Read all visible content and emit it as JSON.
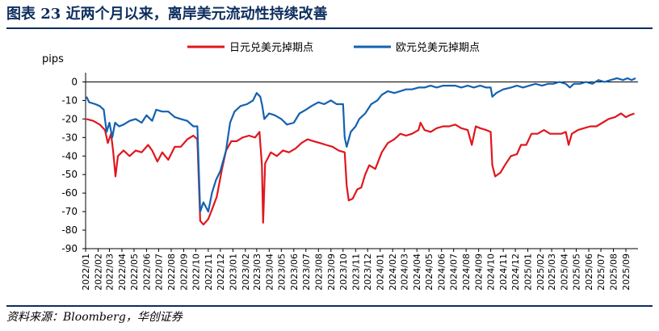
{
  "header": {
    "title": "图表 23   近两个月以来，离岸美元流动性持续改善"
  },
  "footer": {
    "source": "资料来源：Bloomberg，华创证券"
  },
  "colors": {
    "title": "#0d2d5e",
    "jpy_series": "#e0161d",
    "eur_series": "#1461b0"
  },
  "chart_data": {
    "type": "line",
    "title": "",
    "xlabel": "",
    "ylabel": "pips",
    "ylim": [
      -90,
      5
    ],
    "yticks": [
      0,
      -10,
      -20,
      -30,
      -40,
      -50,
      -60,
      -70,
      -80,
      -90
    ],
    "ytick_labels": [
      "0",
      "-10",
      "-20",
      "-30",
      "-40",
      "-50",
      "-60",
      "-70",
      "-80",
      "-90"
    ],
    "xtick_labels": [
      "2022/01",
      "2022/02",
      "2022/03",
      "2022/04",
      "2022/05",
      "2022/06",
      "2022/07",
      "2022/08",
      "2022/09",
      "2022/10",
      "2022/11",
      "2022/12",
      "2023/01",
      "2023/02",
      "2023/03",
      "2023/04",
      "2023/05",
      "2023/06",
      "2023/07",
      "2023/08",
      "2023/09",
      "2023/10",
      "2023/11",
      "2023/12",
      "2024/01",
      "2024/02",
      "2024/03",
      "2024/04",
      "2024/05",
      "2024/06",
      "2024/07",
      "2024/08",
      "2024/09",
      "2024/10",
      "2024/11",
      "2024/12",
      "2025/01",
      "2025/02",
      "2025/03",
      "2025/04",
      "2025/05",
      "2025/06",
      "2025/07",
      "2025/08",
      "2025/09"
    ],
    "legend_position": "top",
    "grid": false,
    "series": [
      {
        "name": "日元兑美元掉期点",
        "color": "#e0161d",
        "points": [
          [
            "2022/01/03",
            -20
          ],
          [
            "2022/01/20",
            -21
          ],
          [
            "2022/02/05",
            -23
          ],
          [
            "2022/02/18",
            -26
          ],
          [
            "2022/02/25",
            -33
          ],
          [
            "2022/03/05",
            -28
          ],
          [
            "2022/03/10",
            -37
          ],
          [
            "2022/03/16",
            -51
          ],
          [
            "2022/03/22",
            -40
          ],
          [
            "2022/04/05",
            -37
          ],
          [
            "2022/04/20",
            -40
          ],
          [
            "2022/05/05",
            -37
          ],
          [
            "2022/05/20",
            -38
          ],
          [
            "2022/06/05",
            -34
          ],
          [
            "2022/06/15",
            -37
          ],
          [
            "2022/06/28",
            -43
          ],
          [
            "2022/07/10",
            -38
          ],
          [
            "2022/07/25",
            -42
          ],
          [
            "2022/08/10",
            -35
          ],
          [
            "2022/08/25",
            -35
          ],
          [
            "2022/09/10",
            -31
          ],
          [
            "2022/09/25",
            -29
          ],
          [
            "2022/10/05",
            -31
          ],
          [
            "2022/10/12",
            -75
          ],
          [
            "2022/10/20",
            -77
          ],
          [
            "2022/11/01",
            -74
          ],
          [
            "2022/11/10",
            -69
          ],
          [
            "2022/11/22",
            -62
          ],
          [
            "2022/12/05",
            -47
          ],
          [
            "2022/12/15",
            -37
          ],
          [
            "2022/12/28",
            -32
          ],
          [
            "2023/01/10",
            -32
          ],
          [
            "2023/01/25",
            -30
          ],
          [
            "2023/02/10",
            -29
          ],
          [
            "2023/02/25",
            -30
          ],
          [
            "2023/03/08",
            -27
          ],
          [
            "2023/03/14",
            -45
          ],
          [
            "2023/03/17",
            -76
          ],
          [
            "2023/03/22",
            -44
          ],
          [
            "2023/04/05",
            -38
          ],
          [
            "2023/04/20",
            -40
          ],
          [
            "2023/05/05",
            -37
          ],
          [
            "2023/05/20",
            -38
          ],
          [
            "2023/06/05",
            -36
          ],
          [
            "2023/06/20",
            -33
          ],
          [
            "2023/07/05",
            -31
          ],
          [
            "2023/07/20",
            -32
          ],
          [
            "2023/08/05",
            -33
          ],
          [
            "2023/08/20",
            -34
          ],
          [
            "2023/09/05",
            -35
          ],
          [
            "2023/09/20",
            -37
          ],
          [
            "2023/10/05",
            -38
          ],
          [
            "2023/10/10",
            -56
          ],
          [
            "2023/10/15",
            -64
          ],
          [
            "2023/10/25",
            -63
          ],
          [
            "2023/11/05",
            -58
          ],
          [
            "2023/11/15",
            -57
          ],
          [
            "2023/11/25",
            -50
          ],
          [
            "2023/12/05",
            -45
          ],
          [
            "2023/12/20",
            -47
          ],
          [
            "2024/01/05",
            -38
          ],
          [
            "2024/01/20",
            -33
          ],
          [
            "2024/02/05",
            -31
          ],
          [
            "2024/02/20",
            -28
          ],
          [
            "2024/03/05",
            -29
          ],
          [
            "2024/03/20",
            -28
          ],
          [
            "2024/04/05",
            -26
          ],
          [
            "2024/04/10",
            -22
          ],
          [
            "2024/04/20",
            -26
          ],
          [
            "2024/05/05",
            -27
          ],
          [
            "2024/05/20",
            -25
          ],
          [
            "2024/06/05",
            -24
          ],
          [
            "2024/06/20",
            -24
          ],
          [
            "2024/07/05",
            -23
          ],
          [
            "2024/07/20",
            -25
          ],
          [
            "2024/08/05",
            -26
          ],
          [
            "2024/08/15",
            -34
          ],
          [
            "2024/08/25",
            -24
          ],
          [
            "2024/09/05",
            -25
          ],
          [
            "2024/09/20",
            -26
          ],
          [
            "2024/10/01",
            -27
          ],
          [
            "2024/10/05",
            -45
          ],
          [
            "2024/10/12",
            -51
          ],
          [
            "2024/10/25",
            -49
          ],
          [
            "2024/11/05",
            -45
          ],
          [
            "2024/11/20",
            -40
          ],
          [
            "2024/12/05",
            -39
          ],
          [
            "2024/12/15",
            -34
          ],
          [
            "2024/12/28",
            -34
          ],
          [
            "2025/01/10",
            -28
          ],
          [
            "2025/01/25",
            -28
          ],
          [
            "2025/02/10",
            -26
          ],
          [
            "2025/02/25",
            -28
          ],
          [
            "2025/03/10",
            -28
          ],
          [
            "2025/03/25",
            -28
          ],
          [
            "2025/04/05",
            -27
          ],
          [
            "2025/04/12",
            -34
          ],
          [
            "2025/04/20",
            -28
          ],
          [
            "2025/05/05",
            -26
          ],
          [
            "2025/05/20",
            -25
          ],
          [
            "2025/06/05",
            -24
          ],
          [
            "2025/06/20",
            -24
          ],
          [
            "2025/07/05",
            -22
          ],
          [
            "2025/07/20",
            -20
          ],
          [
            "2025/08/05",
            -19
          ],
          [
            "2025/08/20",
            -17
          ],
          [
            "2025/09/01",
            -19
          ],
          [
            "2025/09/10",
            -18
          ],
          [
            "2025/09/22",
            -17
          ]
        ]
      },
      {
        "name": "欧元兑美元掉期点",
        "color": "#1461b0",
        "points": [
          [
            "2022/01/03",
            -8
          ],
          [
            "2022/01/10",
            -11
          ],
          [
            "2022/01/25",
            -12
          ],
          [
            "2022/02/05",
            -13
          ],
          [
            "2022/02/15",
            -15
          ],
          [
            "2022/02/22",
            -27
          ],
          [
            "2022/03/01",
            -22
          ],
          [
            "2022/03/08",
            -30
          ],
          [
            "2022/03/15",
            -22
          ],
          [
            "2022/03/25",
            -24
          ],
          [
            "2022/04/05",
            -23
          ],
          [
            "2022/04/20",
            -21
          ],
          [
            "2022/05/05",
            -20
          ],
          [
            "2022/05/20",
            -22
          ],
          [
            "2022/06/01",
            -18
          ],
          [
            "2022/06/15",
            -21
          ],
          [
            "2022/06/25",
            -15
          ],
          [
            "2022/07/10",
            -16
          ],
          [
            "2022/07/25",
            -16
          ],
          [
            "2022/08/10",
            -19
          ],
          [
            "2022/08/25",
            -20
          ],
          [
            "2022/09/10",
            -21
          ],
          [
            "2022/09/25",
            -24
          ],
          [
            "2022/10/05",
            -24
          ],
          [
            "2022/10/12",
            -70
          ],
          [
            "2022/10/20",
            -65
          ],
          [
            "2022/11/01",
            -70
          ],
          [
            "2022/11/10",
            -60
          ],
          [
            "2022/11/20",
            -53
          ],
          [
            "2022/12/01",
            -48
          ],
          [
            "2022/12/15",
            -37
          ],
          [
            "2022/12/25",
            -22
          ],
          [
            "2023/01/05",
            -16
          ],
          [
            "2023/01/20",
            -13
          ],
          [
            "2023/02/05",
            -12
          ],
          [
            "2023/02/20",
            -10
          ],
          [
            "2023/03/01",
            -6
          ],
          [
            "2023/03/10",
            -8
          ],
          [
            "2023/03/15",
            -13
          ],
          [
            "2023/03/20",
            -20
          ],
          [
            "2023/04/01",
            -17
          ],
          [
            "2023/04/15",
            -18
          ],
          [
            "2023/05/01",
            -20
          ],
          [
            "2023/05/15",
            -23
          ],
          [
            "2023/06/01",
            -22
          ],
          [
            "2023/06/15",
            -17
          ],
          [
            "2023/07/01",
            -15
          ],
          [
            "2023/07/15",
            -13
          ],
          [
            "2023/08/01",
            -11
          ],
          [
            "2023/08/15",
            -12
          ],
          [
            "2023/09/01",
            -10
          ],
          [
            "2023/09/15",
            -12
          ],
          [
            "2023/10/01",
            -12
          ],
          [
            "2023/10/05",
            -30
          ],
          [
            "2023/10/10",
            -35
          ],
          [
            "2023/10/20",
            -27
          ],
          [
            "2023/11/01",
            -24
          ],
          [
            "2023/11/10",
            -20
          ],
          [
            "2023/11/25",
            -17
          ],
          [
            "2023/12/10",
            -12
          ],
          [
            "2023/12/25",
            -10
          ],
          [
            "2024/01/05",
            -7
          ],
          [
            "2024/01/20",
            -5
          ],
          [
            "2024/02/05",
            -6
          ],
          [
            "2024/02/20",
            -5
          ],
          [
            "2024/03/05",
            -4
          ],
          [
            "2024/03/20",
            -4
          ],
          [
            "2024/04/05",
            -3
          ],
          [
            "2024/04/20",
            -3
          ],
          [
            "2024/05/05",
            -2
          ],
          [
            "2024/05/20",
            -3
          ],
          [
            "2024/06/05",
            -2
          ],
          [
            "2024/06/20",
            -2
          ],
          [
            "2024/07/05",
            -2
          ],
          [
            "2024/07/20",
            -3
          ],
          [
            "2024/08/05",
            -2
          ],
          [
            "2024/08/20",
            -3
          ],
          [
            "2024/09/05",
            -2
          ],
          [
            "2024/09/20",
            -3
          ],
          [
            "2024/10/01",
            -3
          ],
          [
            "2024/10/05",
            -8
          ],
          [
            "2024/10/15",
            -6
          ],
          [
            "2024/11/01",
            -4
          ],
          [
            "2024/11/20",
            -3
          ],
          [
            "2024/12/05",
            -2
          ],
          [
            "2024/12/20",
            -3
          ],
          [
            "2025/01/05",
            -2
          ],
          [
            "2025/01/20",
            -1
          ],
          [
            "2025/02/05",
            -2
          ],
          [
            "2025/02/20",
            -1
          ],
          [
            "2025/03/05",
            -1
          ],
          [
            "2025/03/20",
            0
          ],
          [
            "2025/04/05",
            -1
          ],
          [
            "2025/04/15",
            -3
          ],
          [
            "2025/04/25",
            -1
          ],
          [
            "2025/05/10",
            -1
          ],
          [
            "2025/05/25",
            0
          ],
          [
            "2025/06/10",
            -1
          ],
          [
            "2025/06/25",
            1
          ],
          [
            "2025/07/10",
            0
          ],
          [
            "2025/07/25",
            1
          ],
          [
            "2025/08/10",
            2
          ],
          [
            "2025/08/25",
            1
          ],
          [
            "2025/09/05",
            2
          ],
          [
            "2025/09/15",
            1
          ],
          [
            "2025/09/25",
            2
          ]
        ]
      }
    ]
  }
}
